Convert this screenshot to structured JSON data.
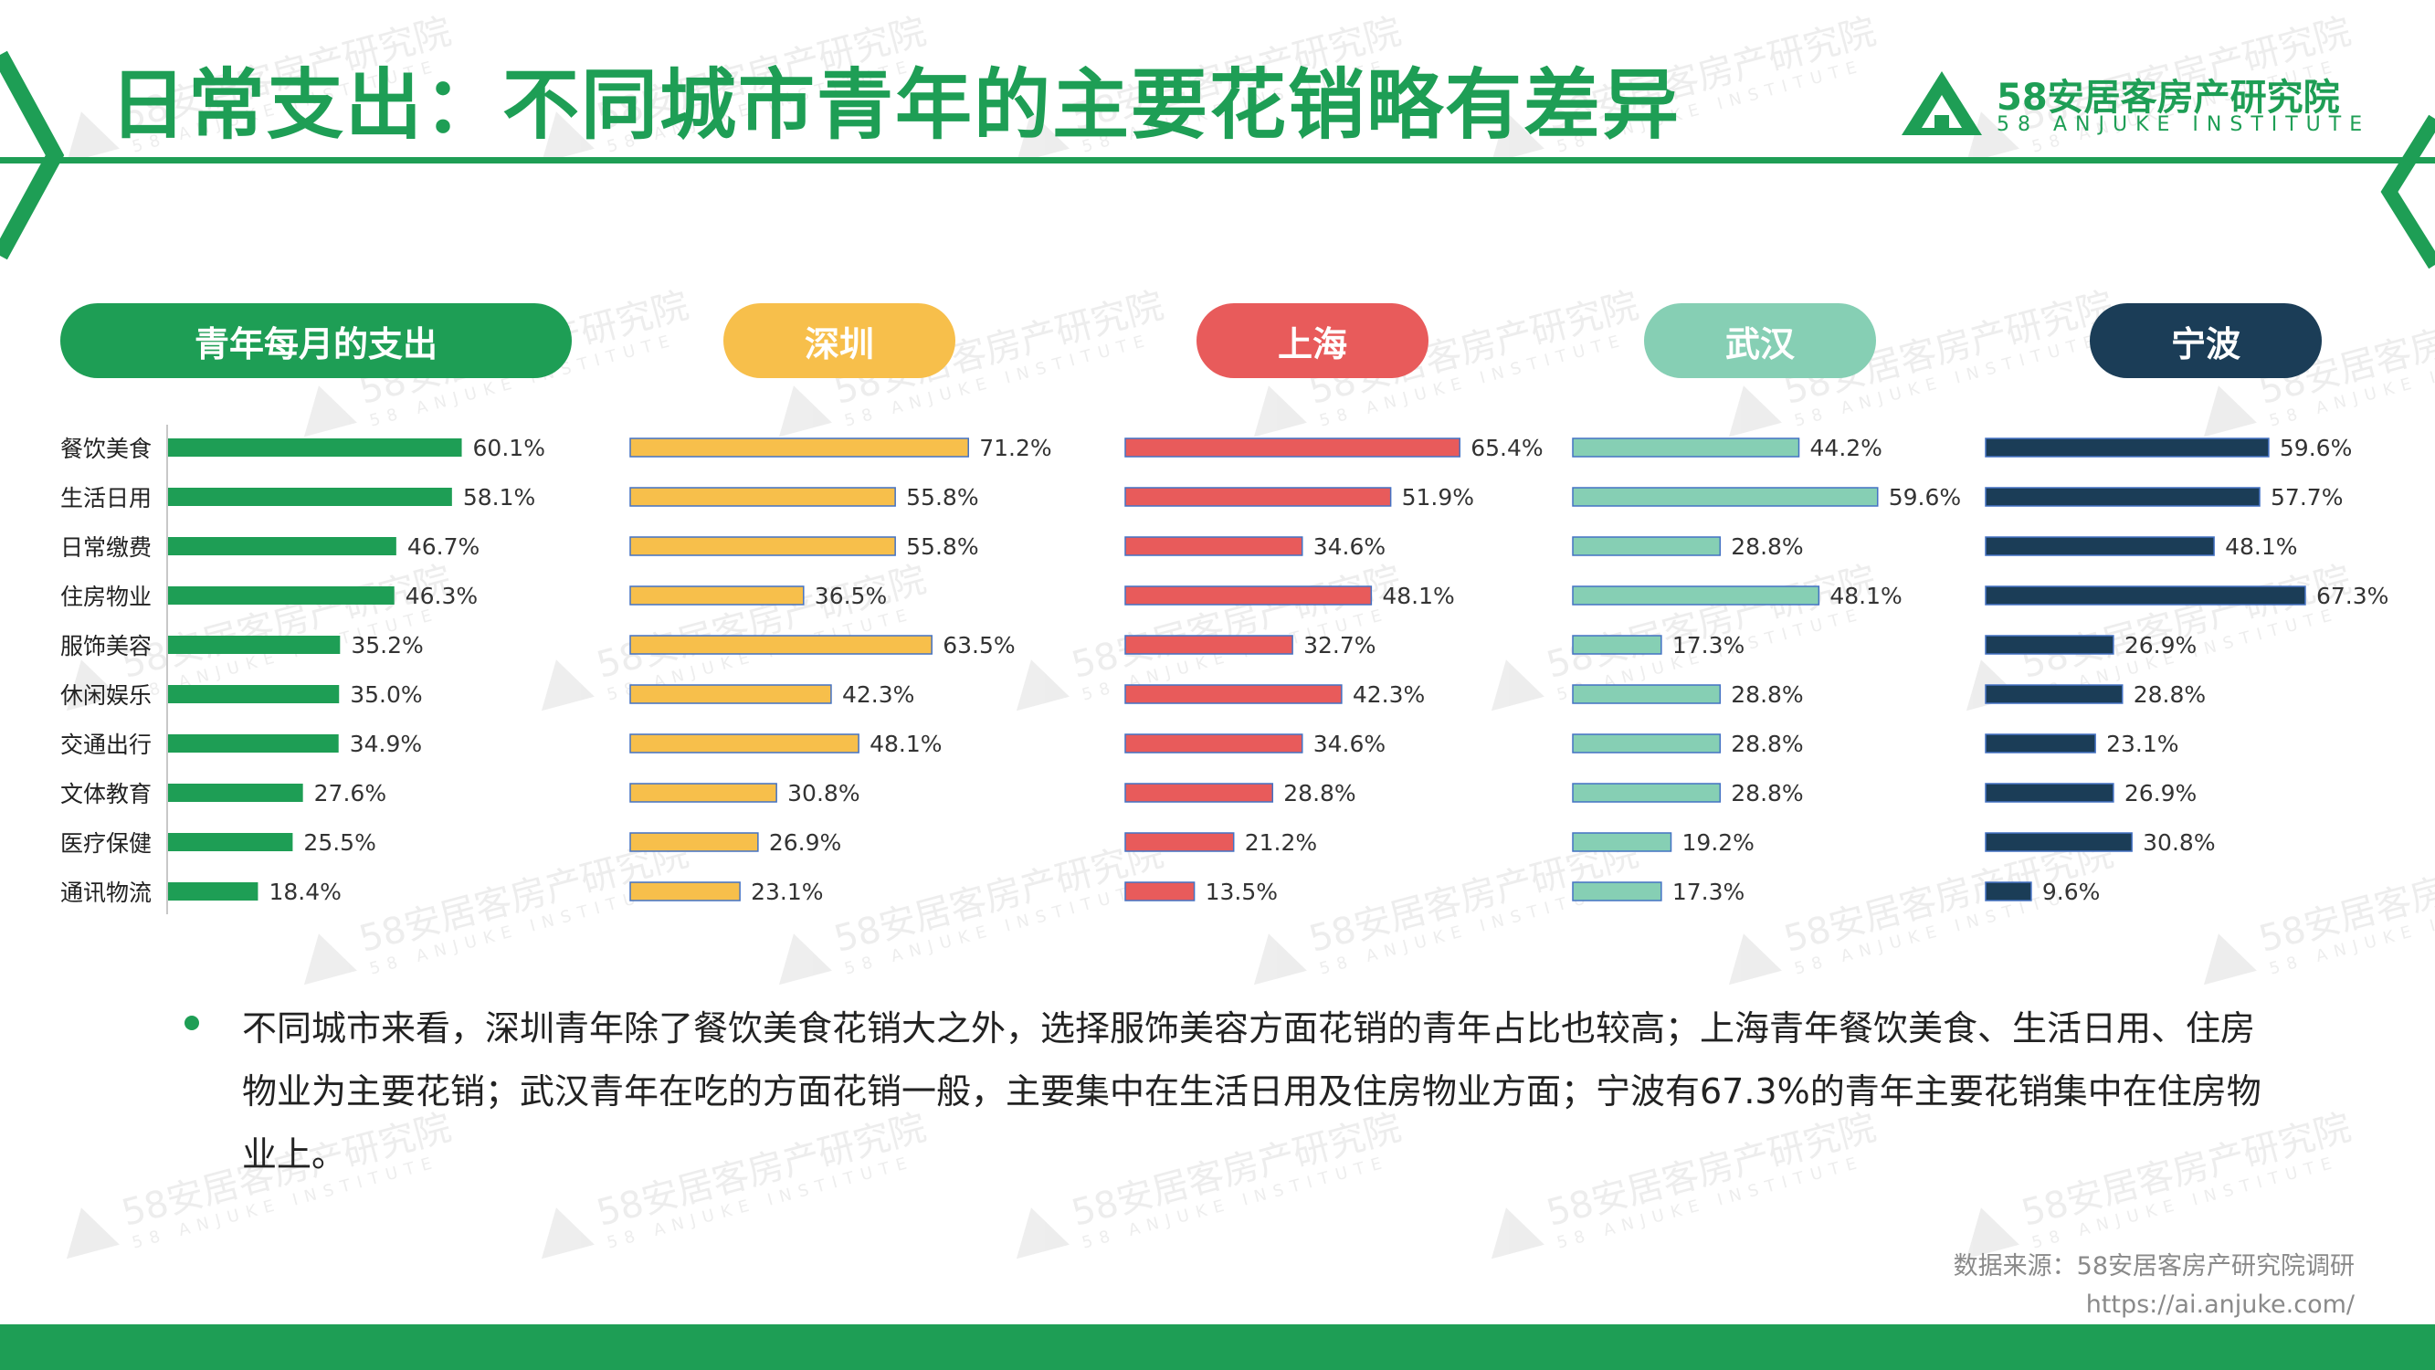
{
  "header": {
    "title": "日常支出：不同城市青年的主要花销略有差异",
    "logo_name": "58安居客房产研究院",
    "logo_subtitle": "58 ANJUKE INSTITUTE"
  },
  "colors": {
    "brand_green": "#1e9e55",
    "shenzhen": "#f7bf4b",
    "shanghai": "#e85b5b",
    "wuhan": "#86cfb4",
    "ningbo": "#1b3d57"
  },
  "chart_data": {
    "type": "bar",
    "orientation": "horizontal",
    "categories": [
      "餐饮美食",
      "生活日用",
      "日常缴费",
      "住房物业",
      "服饰美容",
      "休闲娱乐",
      "交通出行",
      "文体教育",
      "医疗保健",
      "通讯物流"
    ],
    "series": [
      {
        "name": "青年每月的支出",
        "values": [
          60.1,
          58.1,
          46.7,
          46.3,
          35.2,
          35.0,
          34.9,
          27.6,
          25.5,
          18.4
        ],
        "color": "#1e9e55"
      },
      {
        "name": "深圳",
        "values": [
          71.2,
          55.8,
          55.8,
          36.5,
          63.5,
          42.3,
          48.1,
          30.8,
          26.9,
          23.1
        ],
        "color": "#f7bf4b"
      },
      {
        "name": "上海",
        "values": [
          65.4,
          51.9,
          34.6,
          48.1,
          32.7,
          42.3,
          34.6,
          28.8,
          21.2,
          13.5
        ],
        "color": "#e85b5b"
      },
      {
        "name": "武汉",
        "values": [
          44.2,
          59.6,
          28.8,
          48.1,
          17.3,
          28.8,
          28.8,
          28.8,
          19.2,
          17.3
        ],
        "color": "#86cfb4"
      },
      {
        "name": "宁波",
        "values": [
          59.6,
          57.7,
          48.1,
          67.3,
          26.9,
          28.8,
          23.1,
          26.9,
          30.8,
          9.6
        ],
        "color": "#1b3d57"
      }
    ],
    "value_suffix": "%"
  },
  "insight": "不同城市来看，深圳青年除了餐饮美食花销大之外，选择服饰美容方面花销的青年占比也较高；上海青年餐饮美食、生活日用、住房物业为主要花销；武汉青年在吃的方面花销一般，主要集中在生活日用及住房物业方面；宁波有67.3%的青年主要花销集中在住房物业上。",
  "footer": {
    "source": "数据来源：58安居客房产研究院调研",
    "url": "https://ai.anjuke.com/"
  }
}
